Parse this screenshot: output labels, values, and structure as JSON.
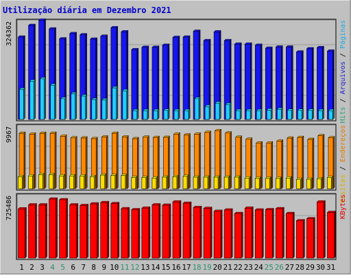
{
  "chart_data": [
    {
      "type": "bar",
      "title": "Utilização diária em Dezembro 2021",
      "categories": [
        "1",
        "2",
        "3",
        "4",
        "5",
        "6",
        "7",
        "8",
        "9",
        "10",
        "11",
        "12",
        "13",
        "14",
        "15",
        "16",
        "17",
        "18",
        "19",
        "20",
        "21",
        "22",
        "23",
        "24",
        "25",
        "26",
        "27",
        "28",
        "29",
        "30",
        "31"
      ],
      "weekend_days": [
        "4",
        "5",
        "11",
        "12",
        "18",
        "19",
        "25",
        "26"
      ],
      "y_max_label": "324362",
      "legend": [
        {
          "text": "Hits",
          "color": "#2f9e73"
        },
        {
          "text": "/",
          "color": "#000000"
        },
        {
          "text": "Arquivos",
          "color": "#2222cc"
        },
        {
          "text": "/",
          "color": "#000000"
        },
        {
          "text": "Páginas",
          "color": "#22aadd"
        }
      ],
      "series": [
        {
          "name": "Hits",
          "color": "#1616ee",
          "values": [
            282000,
            322000,
            340000,
            310000,
            276000,
            294000,
            290000,
            275000,
            285000,
            314000,
            300000,
            239000,
            247000,
            247000,
            254000,
            281000,
            282000,
            302000,
            270000,
            300000,
            270000,
            258000,
            258000,
            254000,
            244000,
            248000,
            248000,
            231000,
            242000,
            246000,
            234000
          ]
        },
        {
          "name": "Arquivos",
          "color": "#1616ee",
          "values": [
            282000,
            322000,
            340000,
            310000,
            276000,
            294000,
            290000,
            275000,
            285000,
            314000,
            300000,
            239000,
            247000,
            247000,
            254000,
            281000,
            282000,
            302000,
            270000,
            300000,
            270000,
            258000,
            258000,
            254000,
            244000,
            248000,
            248000,
            231000,
            242000,
            246000,
            234000
          ]
        },
        {
          "name": "Páginas",
          "color": "#22ccff",
          "values": [
            103000,
            131000,
            139000,
            117000,
            71000,
            88000,
            80000,
            68000,
            67000,
            108000,
            98000,
            30000,
            30000,
            30000,
            31000,
            30000,
            30000,
            71000,
            44000,
            56000,
            51000,
            30000,
            30000,
            30000,
            32000,
            35000,
            31000,
            31000,
            31000,
            30000,
            30000
          ]
        }
      ]
    },
    {
      "type": "bar",
      "y_max_label": "9967",
      "legend": [
        {
          "text": "Visitas",
          "color": "#d4b000"
        },
        {
          "text": "/",
          "color": "#000000"
        },
        {
          "text": "Endereços",
          "color": "#e07a00"
        }
      ],
      "series": [
        {
          "name": "Endereços",
          "color": "#ff8800",
          "values": [
            9370,
            9230,
            9370,
            9370,
            8880,
            8600,
            8580,
            8470,
            8750,
            9370,
            8750,
            8460,
            8720,
            8670,
            8690,
            9230,
            9100,
            9230,
            9520,
            9820,
            9420,
            8710,
            8370,
            7740,
            7740,
            8050,
            8560,
            8670,
            8340,
            8970,
            8620
          ]
        },
        {
          "name": "Visitas",
          "color": "#ffdd00",
          "values": [
            2030,
            2170,
            2380,
            2380,
            2170,
            2170,
            2170,
            2030,
            2310,
            2240,
            2240,
            1890,
            1890,
            1820,
            1970,
            2030,
            2100,
            1970,
            1970,
            1970,
            1970,
            1970,
            1820,
            1750,
            1750,
            1750,
            1820,
            1540,
            1610,
            1680,
            1890
          ]
        }
      ]
    },
    {
      "type": "bar",
      "y_max_label": "725486",
      "legend": [
        {
          "text": "KBytes",
          "color": "#e00000"
        }
      ],
      "series": [
        {
          "name": "KBytes",
          "color": "#ff0000",
          "values": [
            605000,
            654000,
            654000,
            725486,
            717000,
            654000,
            646000,
            666000,
            682000,
            670000,
            607000,
            595000,
            614000,
            654000,
            650000,
            690000,
            674000,
            622000,
            611000,
            575000,
            591000,
            548000,
            614000,
            591000,
            595000,
            607000,
            548000,
            459000,
            484000,
            690000,
            561000
          ]
        }
      ]
    }
  ]
}
